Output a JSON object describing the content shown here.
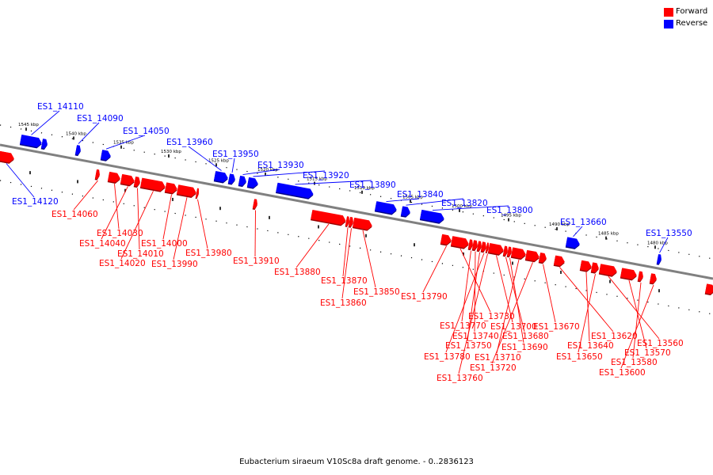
{
  "legend": [
    {
      "label": "Forward",
      "color": "#ff0000"
    },
    {
      "label": "Reverse",
      "color": "#0000ff"
    }
  ],
  "caption": "Eubacterium siraeum V10Sc8a draft genome. - 0..2836123",
  "colors": {
    "forward": "#ff0000",
    "reverse": "#0000ff",
    "backbone": "#808080"
  },
  "ticks": [
    {
      "label": "1545 kbp"
    },
    {
      "label": "1540 kbp"
    },
    {
      "label": "1535 kbp"
    },
    {
      "label": "1530 kbp"
    },
    {
      "label": "1525 kbp"
    },
    {
      "label": "1520 kbp"
    },
    {
      "label": "1515 kbp"
    },
    {
      "label": "1510 kbp"
    },
    {
      "label": "1505 kbp"
    },
    {
      "label": "1500 kbp"
    },
    {
      "label": "1495 kbp"
    },
    {
      "label": "1490 kbp"
    },
    {
      "label": "1485 kbp"
    },
    {
      "label": "1480 kbp"
    }
  ],
  "genes": [
    {
      "name": "ES1_14120",
      "strand": "reverse"
    },
    {
      "name": "ES1_14110",
      "strand": "reverse"
    },
    {
      "name": "ES1_14090",
      "strand": "reverse"
    },
    {
      "name": "ES1_14050",
      "strand": "reverse"
    },
    {
      "name": "ES1_13960",
      "strand": "reverse"
    },
    {
      "name": "ES1_13950",
      "strand": "reverse"
    },
    {
      "name": "ES1_13930",
      "strand": "reverse"
    },
    {
      "name": "ES1_13920",
      "strand": "reverse"
    },
    {
      "name": "ES1_13890",
      "strand": "reverse"
    },
    {
      "name": "ES1_13840",
      "strand": "reverse"
    },
    {
      "name": "ES1_13820",
      "strand": "reverse"
    },
    {
      "name": "ES1_13800",
      "strand": "reverse"
    },
    {
      "name": "ES1_13660",
      "strand": "reverse"
    },
    {
      "name": "ES1_13550",
      "strand": "reverse"
    },
    {
      "name": "ES1_14060",
      "strand": "forward"
    },
    {
      "name": "ES1_14030",
      "strand": "forward"
    },
    {
      "name": "ES1_14040",
      "strand": "forward"
    },
    {
      "name": "ES1_14010",
      "strand": "forward"
    },
    {
      "name": "ES1_14020",
      "strand": "forward"
    },
    {
      "name": "ES1_14000",
      "strand": "forward"
    },
    {
      "name": "ES1_13990",
      "strand": "forward"
    },
    {
      "name": "ES1_13980",
      "strand": "forward"
    },
    {
      "name": "ES1_13910",
      "strand": "forward"
    },
    {
      "name": "ES1_13880",
      "strand": "forward"
    },
    {
      "name": "ES1_13870",
      "strand": "forward"
    },
    {
      "name": "ES1_13860",
      "strand": "forward"
    },
    {
      "name": "ES1_13850",
      "strand": "forward"
    },
    {
      "name": "ES1_13790",
      "strand": "forward"
    },
    {
      "name": "ES1_13730",
      "strand": "forward"
    },
    {
      "name": "ES1_13770",
      "strand": "forward"
    },
    {
      "name": "ES1_13740",
      "strand": "forward"
    },
    {
      "name": "ES1_13750",
      "strand": "forward"
    },
    {
      "name": "ES1_13780",
      "strand": "forward"
    },
    {
      "name": "ES1_13760",
      "strand": "forward"
    },
    {
      "name": "ES1_13700",
      "strand": "forward"
    },
    {
      "name": "ES1_13680",
      "strand": "forward"
    },
    {
      "name": "ES1_13690",
      "strand": "forward"
    },
    {
      "name": "ES1_13710",
      "strand": "forward"
    },
    {
      "name": "ES1_13720",
      "strand": "forward"
    },
    {
      "name": "ES1_13670",
      "strand": "forward"
    },
    {
      "name": "ES1_13620",
      "strand": "forward"
    },
    {
      "name": "ES1_13640",
      "strand": "forward"
    },
    {
      "name": "ES1_13650",
      "strand": "forward"
    },
    {
      "name": "ES1_13560",
      "strand": "forward"
    },
    {
      "name": "ES1_13570",
      "strand": "forward"
    },
    {
      "name": "ES1_13580",
      "strand": "forward"
    },
    {
      "name": "ES1_13600",
      "strand": "forward"
    }
  ]
}
